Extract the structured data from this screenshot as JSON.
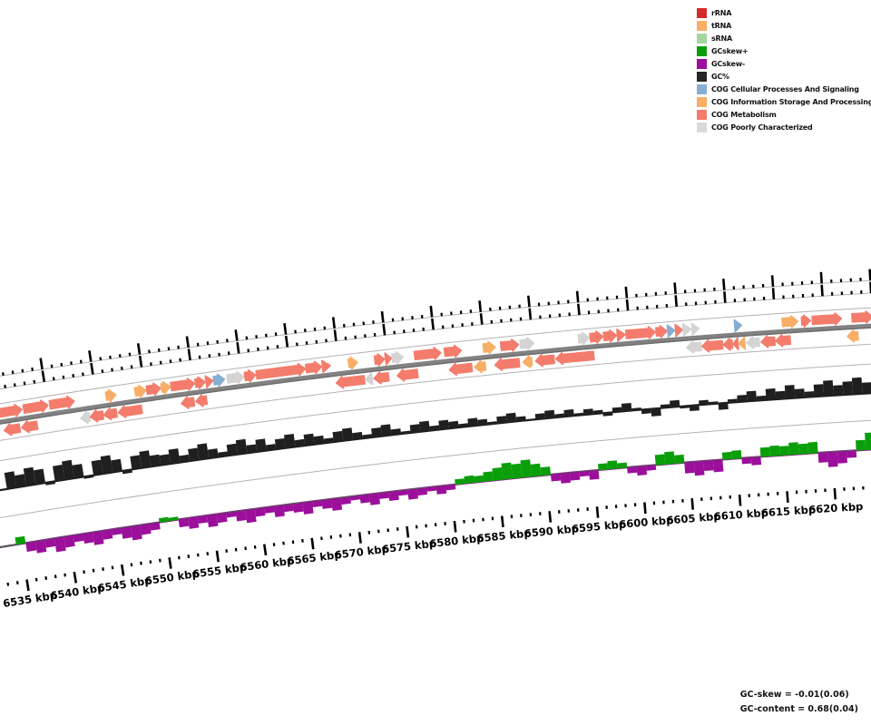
{
  "legend": {
    "items": [
      {
        "label": "rRNA",
        "color": "#d42a2a"
      },
      {
        "label": "tRNA",
        "color": "#f8ae66"
      },
      {
        "label": "sRNA",
        "color": "#a5d6a0"
      },
      {
        "label": "GCskew+",
        "color": "#0b9e0b"
      },
      {
        "label": "GCskew-",
        "color": "#9b0f9b"
      },
      {
        "label": "GC%",
        "color": "#262626"
      },
      {
        "label": "COG Cellular Processes And Signaling",
        "color": "#86aed2"
      },
      {
        "label": "COG Information Storage And Processing",
        "color": "#f8ae66"
      },
      {
        "label": "COG Metabolism",
        "color": "#f47c6c"
      },
      {
        "label": "COG Poorly Characterized",
        "color": "#d9d9d9"
      }
    ]
  },
  "status": {
    "gc_skew_label": "GC-skew = -0.01(0.06)",
    "gc_content_label": "GC-content = 0.68(0.04)"
  },
  "chart_data": {
    "type": "area",
    "subtype": "genome-arc-track-view",
    "unit": "kbp",
    "visible_range_kbp": [
      6532,
      6624
    ],
    "tick_minor_kbp": 1,
    "tick_major_kbp": 5,
    "axis_tick_labels": [
      "6535 kbp",
      "6540 kbp",
      "6545 kbp",
      "6550 kbp",
      "6555 kbp",
      "6560 kbp",
      "6565 kbp",
      "6570 kbp",
      "6575 kbp",
      "6580 kbp",
      "6585 kbp",
      "6590 kbp",
      "6595 kbp",
      "6600 kbp",
      "6605 kbp",
      "6610 kbp",
      "6615 kbp",
      "6620 kbp"
    ],
    "label_suffix": " kbp",
    "cog_colors": {
      "met": "#f47c6c",
      "inf": "#f8ae66",
      "cel": "#86aed2",
      "poor": "#d4d4d4"
    },
    "track_colors": {
      "gc_percent": "#1f1f1f",
      "gc_skew_plus": "#0b9e0b",
      "gc_skew_minus": "#9b0f9b",
      "backbone": "#828282",
      "slot_line": "#b3b3b3",
      "tick": "#000000"
    },
    "genes": {
      "forward": [
        [
          6534.5,
          6537.3,
          "met"
        ],
        [
          6537.5,
          6540.0,
          "met"
        ],
        [
          6540.2,
          6542.7,
          "met"
        ],
        [
          6546.0,
          6547.0,
          "inf"
        ],
        [
          6549.0,
          6550.1,
          "inf"
        ],
        [
          6550.2,
          6551.6,
          "met"
        ],
        [
          6551.7,
          6552.6,
          "inf"
        ],
        [
          6552.7,
          6555.1,
          "met"
        ],
        [
          6555.2,
          6556.2,
          "met"
        ],
        [
          6556.3,
          6557.0,
          "met"
        ],
        [
          6557.1,
          6558.2,
          "cel"
        ],
        [
          6558.5,
          6560.2,
          "poor"
        ],
        [
          6560.3,
          6561.4,
          "met"
        ],
        [
          6561.5,
          6566.5,
          "met"
        ],
        [
          6566.6,
          6568.2,
          "met"
        ],
        [
          6568.3,
          6569.1,
          "met"
        ],
        [
          6571.0,
          6571.9,
          "inf"
        ],
        [
          6573.7,
          6574.7,
          "met"
        ],
        [
          6574.8,
          6575.4,
          "met"
        ],
        [
          6575.5,
          6576.6,
          "poor"
        ],
        [
          6577.8,
          6580.5,
          "met"
        ],
        [
          6580.9,
          6582.6,
          "met"
        ],
        [
          6584.9,
          6586.1,
          "inf"
        ],
        [
          6586.7,
          6588.5,
          "met"
        ],
        [
          6588.7,
          6590.1,
          "poor"
        ],
        [
          6594.7,
          6595.8,
          "poor"
        ],
        [
          6595.9,
          6597.2,
          "met"
        ],
        [
          6597.3,
          6598.6,
          "met"
        ],
        [
          6598.7,
          6599.5,
          "met"
        ],
        [
          6599.6,
          6602.6,
          "met"
        ],
        [
          6602.7,
          6603.8,
          "met"
        ],
        [
          6603.9,
          6604.6,
          "cel"
        ],
        [
          6604.7,
          6605.4,
          "met"
        ],
        [
          6605.5,
          6606.3,
          "poor"
        ],
        [
          6606.4,
          6607.1,
          "poor"
        ],
        [
          6610.8,
          6611.5,
          "cel"
        ],
        [
          6615.7,
          6617.3,
          "inf"
        ],
        [
          6617.7,
          6618.6,
          "met"
        ],
        [
          6618.8,
          6621.8,
          "met"
        ],
        [
          6622.9,
          6625.0,
          "met"
        ]
      ],
      "reverse": [
        [
          6535.2,
          6536.8,
          "met"
        ],
        [
          6537.0,
          6538.6,
          "met"
        ],
        [
          6543.1,
          6544.0,
          "poor"
        ],
        [
          6544.1,
          6545.4,
          "met"
        ],
        [
          6545.5,
          6546.8,
          "met"
        ],
        [
          6547.0,
          6549.4,
          "met"
        ],
        [
          6553.5,
          6554.8,
          "met"
        ],
        [
          6555.0,
          6556.1,
          "met"
        ],
        [
          6569.5,
          6572.4,
          "met"
        ],
        [
          6572.5,
          6573.2,
          "poor"
        ],
        [
          6573.4,
          6574.9,
          "met"
        ],
        [
          6575.8,
          6577.9,
          "met"
        ],
        [
          6581.2,
          6583.5,
          "met"
        ],
        [
          6583.8,
          6584.9,
          "inf"
        ],
        [
          6585.9,
          6588.4,
          "met"
        ],
        [
          6588.8,
          6589.7,
          "inf"
        ],
        [
          6590.1,
          6592.0,
          "met"
        ],
        [
          6592.2,
          6596.1,
          "met"
        ],
        [
          6605.7,
          6607.2,
          "poor"
        ],
        [
          6607.3,
          6609.4,
          "met"
        ],
        [
          6609.5,
          6610.4,
          "met"
        ],
        [
          6610.5,
          6611.0,
          "met"
        ],
        [
          6611.1,
          6611.7,
          "inf"
        ],
        [
          6611.9,
          6613.2,
          "poor"
        ],
        [
          6613.4,
          6614.8,
          "met"
        ],
        [
          6614.9,
          6616.4,
          "met"
        ],
        [
          6622.3,
          6623.4,
          "inf"
        ]
      ]
    },
    "gc_percent": {
      "mean": 0.68,
      "std": 0.04,
      "start_kbp": 6534.5,
      "step_kbp": 1,
      "values": [
        0.75,
        0.55,
        0.8,
        0.65,
        -0.12,
        0.7,
        0.85,
        0.6,
        -0.1,
        0.65,
        0.8,
        0.55,
        -0.15,
        0.6,
        0.75,
        0.5,
        0.45,
        0.65,
        0.3,
        0.55,
        0.7,
        0.4,
        0.2,
        0.5,
        0.65,
        0.35,
        0.55,
        0.25,
        0.45,
        0.6,
        0.3,
        0.5,
        0.35,
        0.2,
        0.45,
        0.55,
        0.3,
        0.15,
        0.4,
        0.5,
        0.25,
        0.1,
        0.35,
        0.45,
        0.2,
        0.4,
        0.3,
        0.15,
        0.35,
        0.25,
        0.1,
        0.3,
        0.4,
        0.2,
        0.05,
        0.25,
        0.35,
        0.15,
        0.3,
        0.1,
        0.25,
        0.15,
        -0.15,
        0.2,
        0.35,
        0.1,
        -0.2,
        -0.35,
        0.15,
        0.3,
        -0.1,
        -0.25,
        0.2,
        0.1,
        -0.3,
        0.15,
        0.3,
        0.45,
        0.2,
        0.5,
        0.35,
        0.6,
        0.4,
        0.25,
        0.55,
        0.7,
        0.45,
        0.6,
        0.75,
        0.5,
        0.65,
        0.8,
        0.7
      ]
    },
    "gc_skew": {
      "mean": -0.01,
      "std": 0.06,
      "start_kbp": 6534.5,
      "step_kbp": 1,
      "values": [
        0.35,
        -0.45,
        -0.6,
        -0.4,
        -0.7,
        -0.55,
        -0.35,
        -0.5,
        -0.65,
        -0.45,
        -0.3,
        -0.55,
        -0.7,
        -0.5,
        -0.35,
        0.2,
        0.15,
        -0.4,
        -0.55,
        -0.35,
        -0.6,
        -0.45,
        -0.25,
        -0.5,
        -0.65,
        -0.4,
        -0.3,
        -0.55,
        -0.35,
        -0.45,
        -0.6,
        -0.3,
        -0.45,
        -0.6,
        -0.35,
        -0.2,
        -0.4,
        -0.55,
        -0.3,
        -0.45,
        -0.25,
        -0.5,
        -0.35,
        -0.2,
        -0.4,
        -0.25,
        0.25,
        0.35,
        0.3,
        0.45,
        0.6,
        0.8,
        0.7,
        0.85,
        0.6,
        0.4,
        -0.35,
        -0.5,
        -0.4,
        -0.25,
        -0.45,
        0.3,
        0.4,
        0.25,
        -0.3,
        -0.45,
        -0.25,
        0.5,
        0.6,
        0.4,
        -0.55,
        -0.7,
        -0.5,
        -0.6,
        0.35,
        0.4,
        -0.3,
        -0.4,
        0.45,
        0.5,
        0.45,
        0.6,
        0.5,
        0.55,
        -0.5,
        -0.75,
        -0.6,
        -0.35,
        0.5,
        0.85,
        0.7,
        0.8,
        0.75
      ]
    }
  }
}
